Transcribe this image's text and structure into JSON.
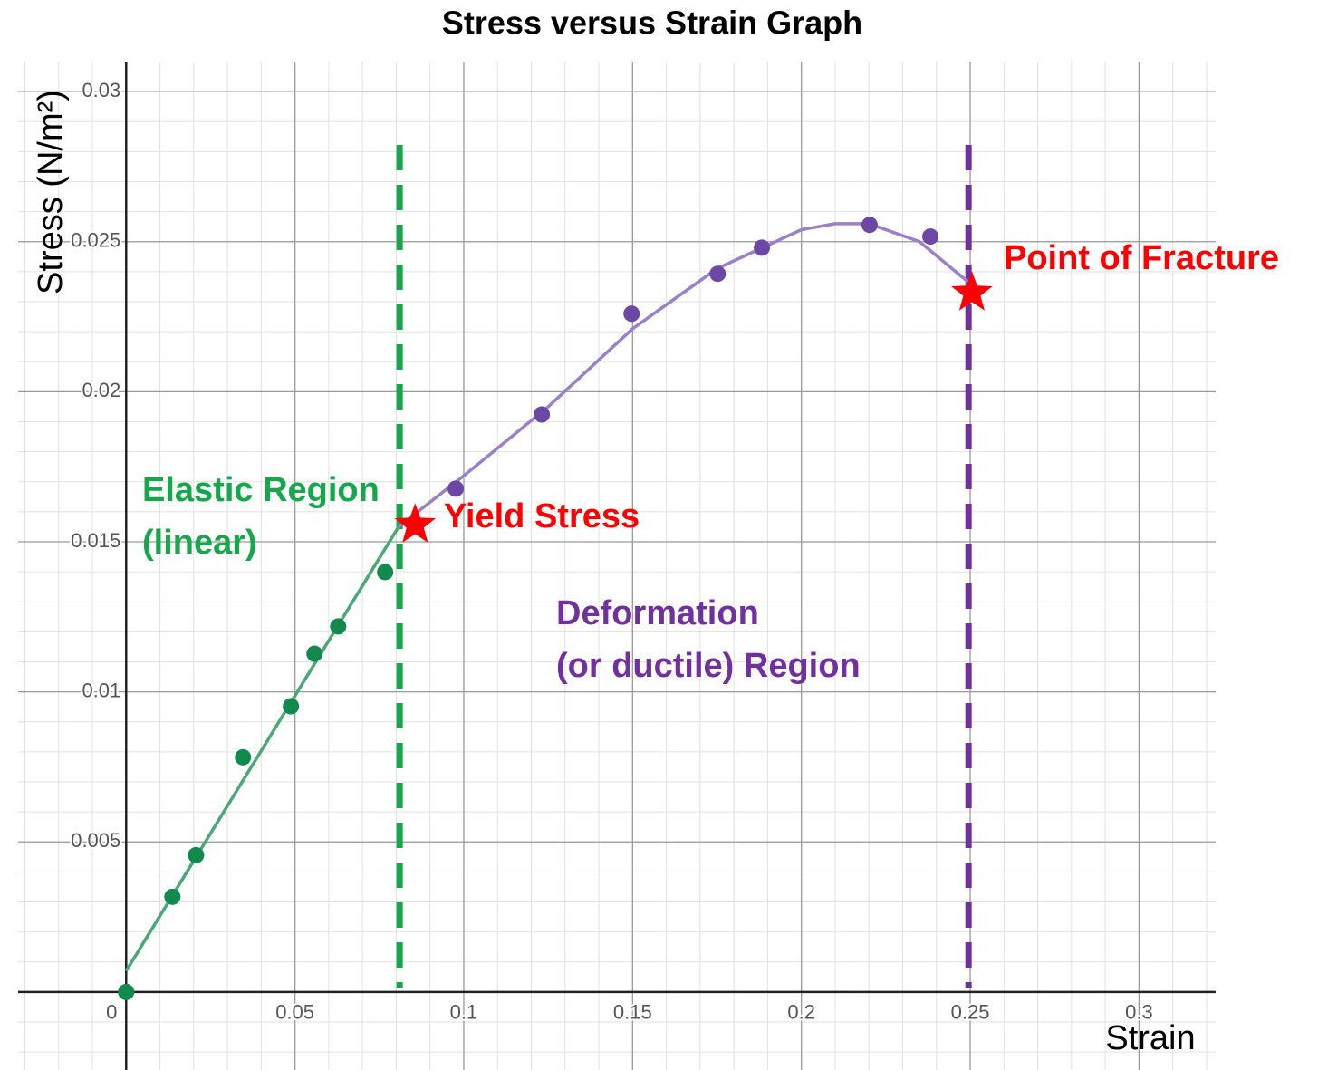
{
  "chart_data": {
    "type": "scatter",
    "title": "Stress versus Strain Graph",
    "xlabel": "Strain",
    "ylabel": "Stress (N/m²)",
    "xlim": [
      -0.032,
      0.3227
    ],
    "ylim": [
      -0.0026,
      0.031
    ],
    "xticks": [
      0,
      0.05,
      0.1,
      0.15,
      0.2,
      0.25,
      0.3
    ],
    "yticks": [
      0.005,
      0.01,
      0.015,
      0.02,
      0.025,
      0.03
    ],
    "grid": true,
    "minor_divisions": 5,
    "series": [
      {
        "color": "#138a4d",
        "x": [
          0,
          0.0137,
          0.0207,
          0.0346,
          0.0488,
          0.0558,
          0.0628,
          0.0767
        ],
        "y": [
          0,
          0.00317,
          0.00456,
          0.00782,
          0.00952,
          0.01127,
          0.01218,
          0.01399
        ]
      },
      {
        "color": "#6b48a6",
        "x": [
          0.0976,
          0.1231,
          0.1497,
          0.1752,
          0.1883,
          0.2202,
          0.2382
        ],
        "y": [
          0.01677,
          0.01924,
          0.0226,
          0.02393,
          0.0248,
          0.02556,
          0.02517
        ]
      }
    ],
    "fits": [
      {
        "color": "#4aa877",
        "x": [
          0,
          0.0807
        ],
        "y": [
          0.0007,
          0.0155
        ]
      },
      {
        "color": "#9b7fc9",
        "x": [
          0.0807,
          0.1,
          0.125,
          0.15,
          0.175,
          0.2,
          0.21,
          0.22,
          0.235,
          0.25
        ],
        "y": [
          0.0155,
          0.0172,
          0.0195,
          0.0221,
          0.0241,
          0.0254,
          0.0256,
          0.0256,
          0.025,
          0.0236
        ]
      }
    ],
    "vlines": [
      {
        "x": 0.081,
        "color": "#14a84a"
      },
      {
        "x": 0.2495,
        "color": "#7030a0"
      }
    ],
    "markers": [
      {
        "x": 0.0856,
        "y": 0.01556,
        "color": "#ff0000"
      },
      {
        "x": 0.2505,
        "y": 0.02329,
        "color": "#ff0000"
      }
    ],
    "annotations": [
      {
        "text": "Elastic Region",
        "color": "#14a84a"
      },
      {
        "text": "(linear)",
        "color": "#14a84a"
      },
      {
        "text": "Yield Stress",
        "color": "#ff0000"
      },
      {
        "text": "Point of Fracture",
        "color": "#ff0000"
      },
      {
        "text": "Deformation",
        "color": "#7030a0"
      },
      {
        "text": "(or ductile) Region",
        "color": "#7030a0"
      }
    ]
  }
}
